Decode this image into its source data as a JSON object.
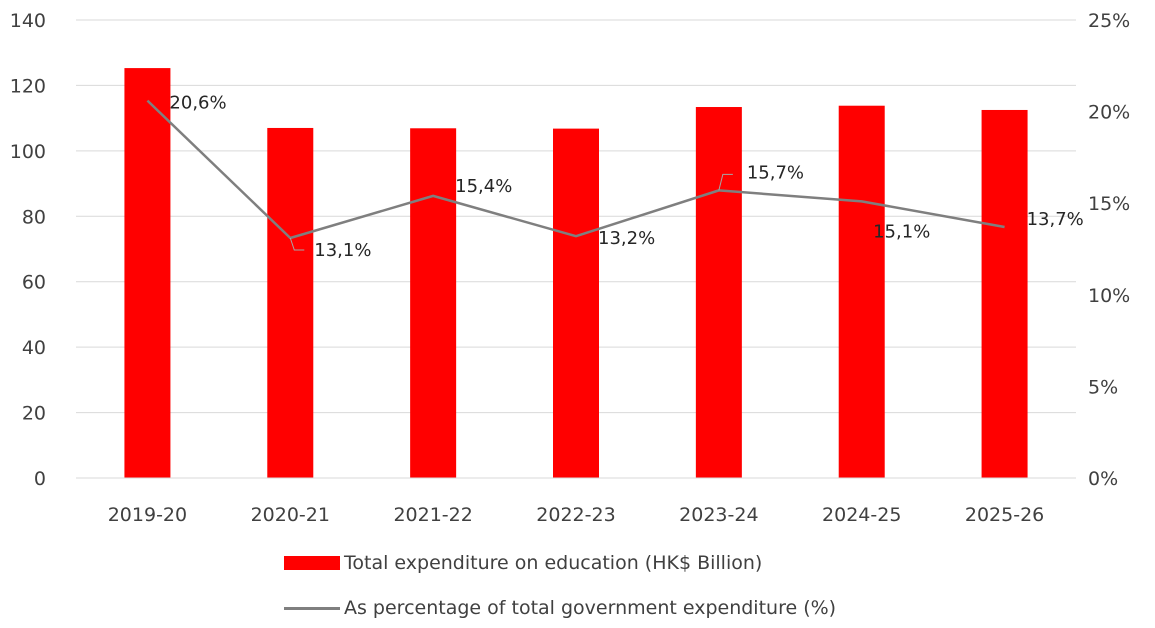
{
  "chart_data": {
    "type": "bar",
    "categories": [
      "2019-20",
      "2020-21",
      "2021-22",
      "2022-23",
      "2023-24",
      "2024-25",
      "2025-26"
    ],
    "series": [
      {
        "name": "Total expenditure on education (HK$ Billion)",
        "type": "bar",
        "axis": "left",
        "color": "#ff0000",
        "values": [
          125.3,
          107.0,
          106.9,
          106.8,
          113.4,
          113.8,
          112.5
        ]
      },
      {
        "name": "As percentage of total government expenditure (%)",
        "type": "line",
        "axis": "right",
        "color": "#7f7f7f",
        "values": [
          20.6,
          13.1,
          15.4,
          13.2,
          15.7,
          15.1,
          13.7
        ],
        "data_labels": [
          "20,6%",
          "13,1%",
          "15,4%",
          "13,2%",
          "15,7%",
          "15,1%",
          "13,7%"
        ]
      }
    ],
    "y_left": {
      "ylim": [
        0,
        140
      ],
      "ticks": [
        "0",
        "20",
        "40",
        "60",
        "80",
        "100",
        "120",
        "140"
      ]
    },
    "y_right": {
      "ylim": [
        0,
        25
      ],
      "ticks": [
        "0%",
        "5%",
        "10%",
        "15%",
        "20%",
        "25%"
      ]
    },
    "grid": true,
    "legend_position": "bottom",
    "title": "",
    "xlabel": "",
    "ylabel": ""
  }
}
